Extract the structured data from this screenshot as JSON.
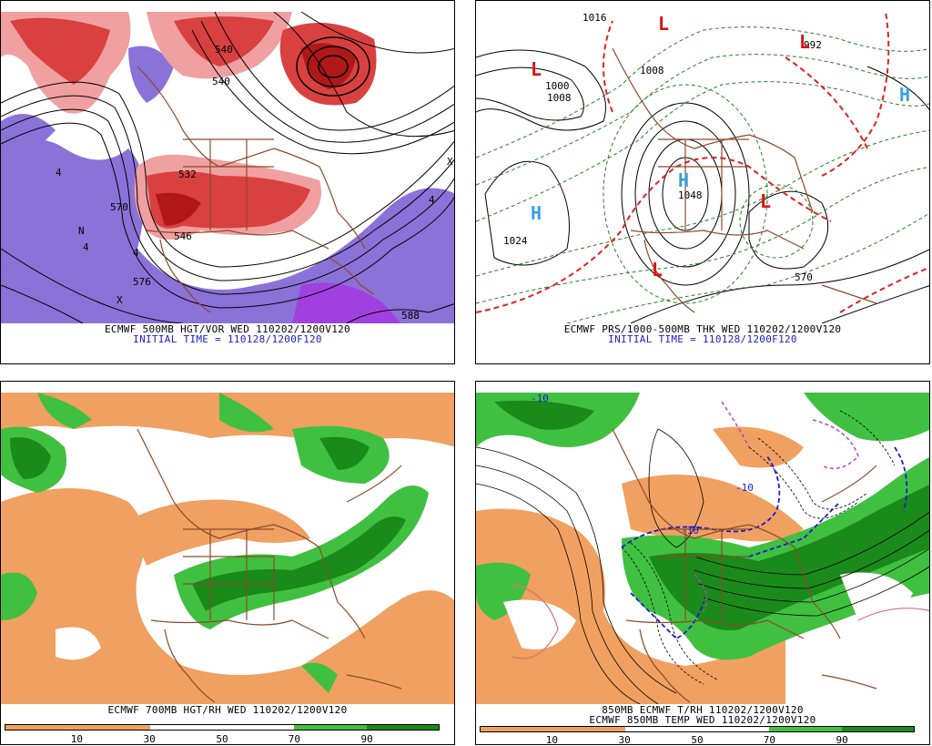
{
  "panels": {
    "p1": {
      "caption_line1": "ECMWF 500MB HGT/VOR WED 110202/1200V120",
      "caption_line2": "INITIAL TIME = 110128/1200F120",
      "contour_labels": [
        "532",
        "540",
        "570",
        "576",
        "588",
        "546",
        "540"
      ],
      "vort_labels": [
        "4",
        "4",
        "4",
        "4",
        "N",
        "X",
        "X"
      ]
    },
    "p2": {
      "caption_line1": "ECMWF PRS/1000-500MB THK WED 110202/1200V120",
      "caption_line2": "INITIAL TIME = 110128/1200F120",
      "pressure_labels": [
        "1024",
        "1000",
        "1008",
        "1016",
        "1008",
        "992",
        "1048",
        "570"
      ],
      "centers": [
        "L",
        "L",
        "L",
        "L",
        "L",
        "H",
        "H",
        "H"
      ]
    },
    "p3": {
      "caption_line1": "ECMWF 700MB HGT/RH WED 110202/1200V120",
      "scale_ticks": [
        "10",
        "30",
        "50",
        "70",
        "90"
      ]
    },
    "p4": {
      "caption_line1": "850MB ECMWF T/RH 110202/1200V120",
      "caption_line2": "ECMWF 850MB TEMP WED 110202/1200V120",
      "temp_labels": [
        "-10",
        "-10",
        "-10"
      ],
      "scale_ticks": [
        "10",
        "30",
        "50",
        "70",
        "90"
      ]
    }
  },
  "colors": {
    "vort_red": "#d94040",
    "vort_pink": "#f0a0a0",
    "vort_purple": "#8a72d8",
    "rh_orange": "#f0a060",
    "rh_light_green": "#40c040",
    "rh_dark_green": "#1a8a1a",
    "border_brown": "#8b4a2a",
    "thick_red": "#e02020",
    "thick_green": "#208020",
    "center_red": "#e01010",
    "center_blue": "#3aa0e0",
    "temp_blue": "#1a1ad6",
    "temp_magenta": "#c040c0"
  }
}
